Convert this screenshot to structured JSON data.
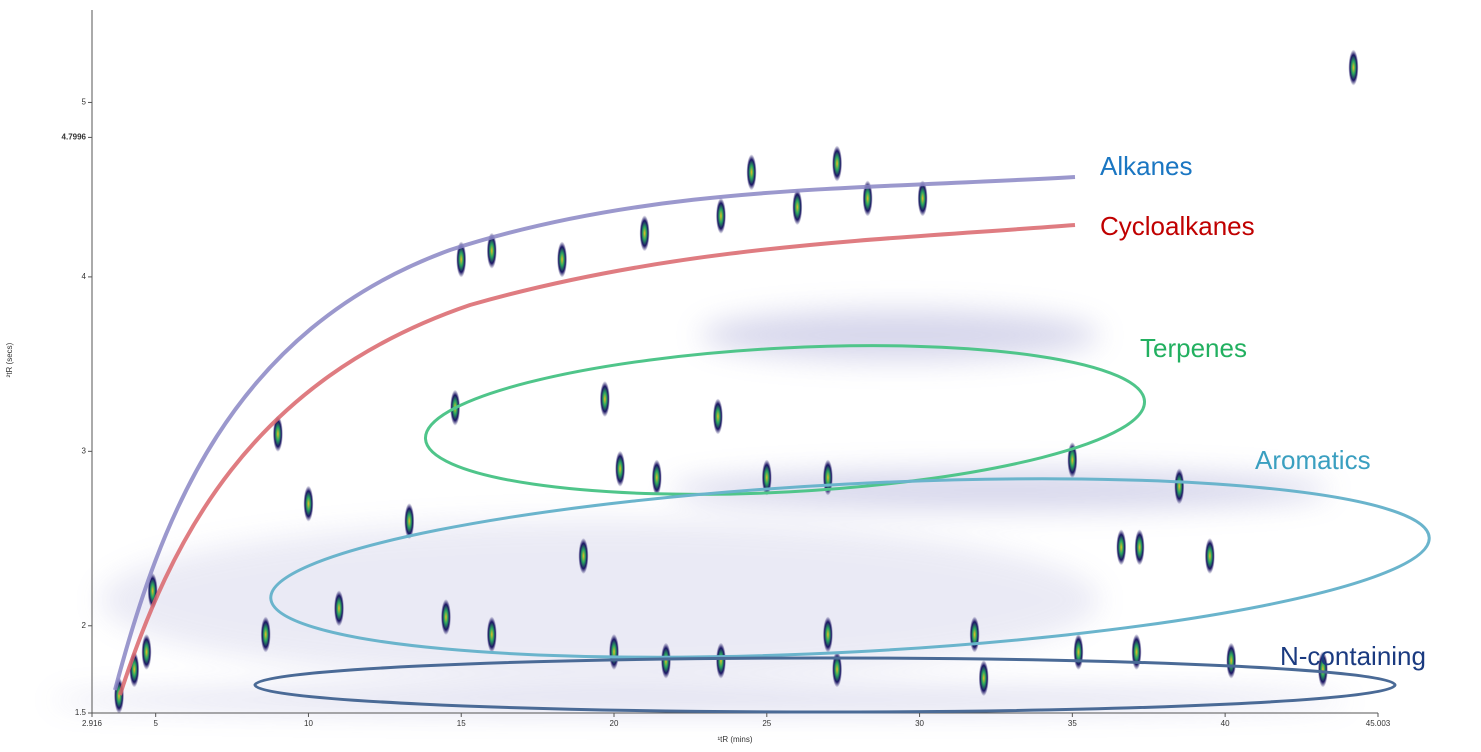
{
  "chart_data": {
    "type": "scatter",
    "x_label": "¹tR (mins)",
    "y_label": "²tR (secs)",
    "xlim": [
      2.916,
      45.003
    ],
    "xticks": [
      2.916,
      5,
      10,
      15,
      20,
      25,
      30,
      35,
      40,
      45.003
    ],
    "ylim": [
      1.5,
      5.53
    ],
    "yticks": [
      1.5,
      2,
      3,
      4,
      4.7996,
      5
    ],
    "color": "#1b1464",
    "x": [
      15,
      16,
      18.3,
      21,
      23.5,
      24.5,
      26,
      27.3,
      28.3,
      30.1,
      14.8,
      19.7,
      20.2,
      21.4,
      23.4,
      25,
      27,
      35,
      38.5,
      36.6,
      37.2,
      39.5,
      40.2,
      35.2,
      31.8,
      32.1,
      27.3,
      27,
      23.5,
      21.7,
      20,
      16,
      14.5,
      11,
      8.6,
      4.7,
      4.3,
      4.9,
      3.8,
      10,
      9,
      13.3,
      44.2,
      43.2,
      37.1,
      19
    ],
    "values": [
      4.1,
      4.15,
      4.1,
      4.25,
      4.35,
      4.6,
      4.4,
      4.65,
      4.45,
      4.45,
      3.25,
      3.3,
      2.9,
      2.85,
      3.2,
      2.85,
      2.85,
      2.95,
      2.8,
      2.45,
      2.45,
      2.4,
      1.8,
      1.85,
      1.95,
      1.7,
      1.75,
      1.95,
      1.8,
      1.8,
      1.85,
      1.95,
      2.05,
      2.1,
      1.95,
      1.85,
      1.75,
      2.2,
      1.6,
      2.7,
      3.1,
      2.6,
      5.2,
      1.75,
      1.85,
      2.4
    ],
    "annotations": [
      "Alkanes",
      "Cycloalkanes",
      "Terpenes",
      "Aromatics",
      "N-containing"
    ]
  }
}
